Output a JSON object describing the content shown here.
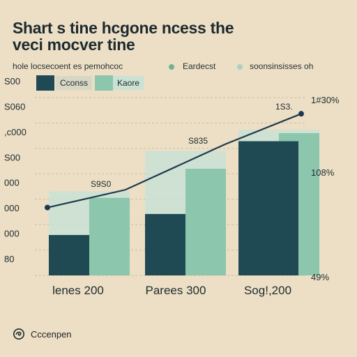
{
  "title": {
    "line1": "Shart s tine hcgone ncess the",
    "line2": "veci mocver tine"
  },
  "subheader": {
    "text1": "hole locsecoent es pemohcoc",
    "text2": "Eardecst",
    "text3": "soonsinsisses oh"
  },
  "legend": {
    "items": [
      {
        "label": "Cconss"
      },
      {
        "label": "Kaore"
      }
    ]
  },
  "colors": {
    "background": "#ecdfc5",
    "dark_teal": "#1f4a53",
    "mint": "#8cc6ad",
    "mint_light": "#c9e2d3",
    "line": "#1d3a4d",
    "dot_accent": "#6fb39a"
  },
  "footer": {
    "text": "Cccenpen",
    "logo_icon": "swirl-logo-icon"
  },
  "chart_data": {
    "type": "bar",
    "categories": [
      "lenes 200",
      "Parees 300",
      "Sog!,200"
    ],
    "series": [
      {
        "name": "Cconss",
        "values": [
          250,
          380,
          830
        ]
      },
      {
        "name": "Kaore",
        "values": [
          480,
          660,
          880
        ]
      }
    ],
    "stacked_caps": [
      520,
      770,
      900
    ],
    "line_series": {
      "values": [
        420,
        530,
        810,
        1000
      ],
      "markers": [
        true,
        false,
        false,
        true
      ]
    },
    "y_ticks_left": [
      "S00",
      "S060",
      ",c000",
      "S00",
      "000",
      "000",
      "000",
      "80"
    ],
    "y_ticks_right": [
      "1#30%",
      "108%",
      "49%"
    ],
    "data_labels": [
      "S9S0",
      "S835",
      "1S3."
    ],
    "ylim": [
      0,
      1100
    ],
    "grid": true,
    "legend_position": "top-left"
  }
}
